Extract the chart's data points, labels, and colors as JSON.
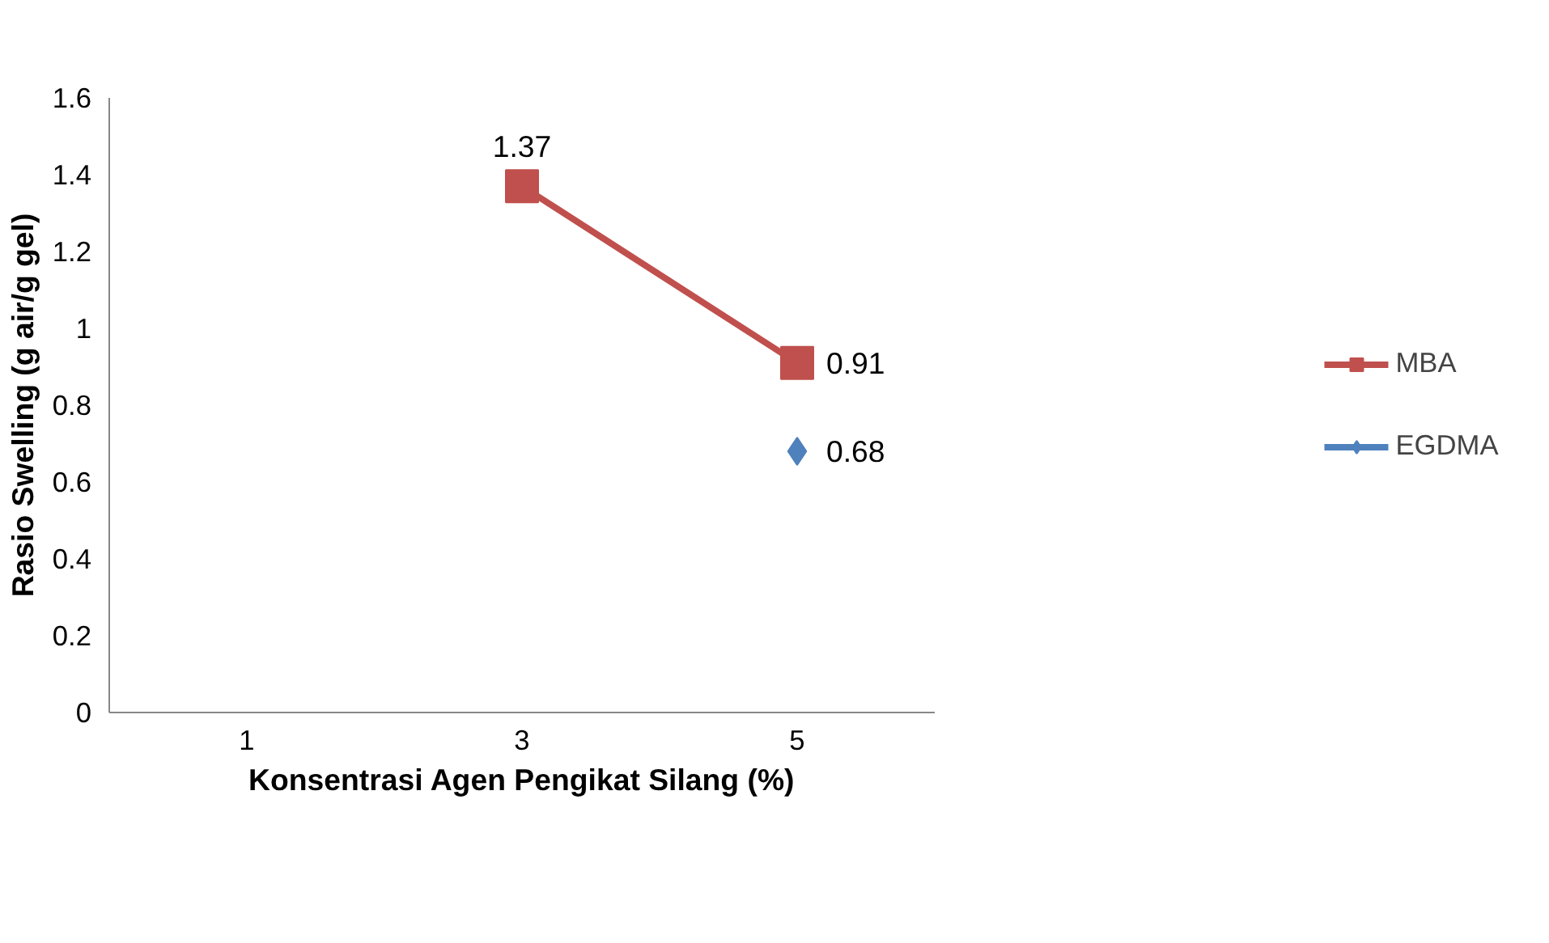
{
  "chart_data": {
    "type": "line",
    "xlabel": "Konsentrasi Agen Pengikat Silang (%)",
    "ylabel": "Rasio Swelling (g air/g gel)",
    "categories": [
      "1",
      "3",
      "5"
    ],
    "series": [
      {
        "name": "MBA",
        "color": "#c0504d",
        "marker": "square",
        "values": [
          null,
          1.37,
          0.91
        ]
      },
      {
        "name": "EGDMA",
        "color": "#4f81bd",
        "marker": "diamond",
        "values": [
          null,
          null,
          0.68
        ]
      }
    ],
    "ylim": [
      0,
      1.6
    ],
    "yticks": [
      0,
      0.2,
      0.4,
      0.6,
      0.8,
      1,
      1.2,
      1.4,
      1.6
    ],
    "grid": false,
    "legend": "right",
    "data_labels": true
  }
}
